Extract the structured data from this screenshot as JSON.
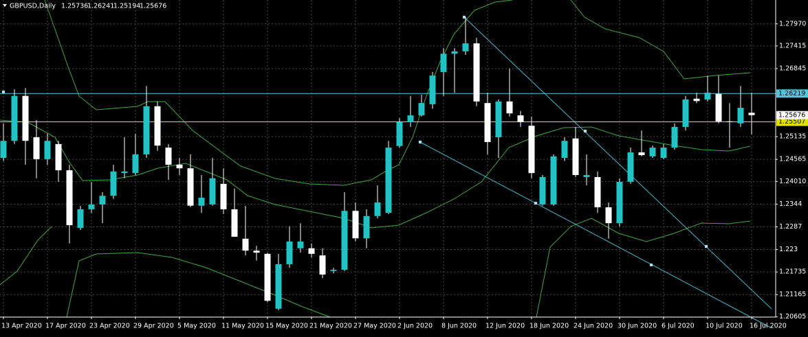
{
  "chart_data": {
    "type": "candlestick",
    "title": "GBPUSD,Daily",
    "categories": [
      "13 Apr 2020",
      null,
      null,
      null,
      "17 Apr 2020",
      null,
      null,
      null,
      "23 Apr 2020",
      null,
      null,
      null,
      "29 Apr 2020",
      null,
      null,
      null,
      "5 May 2020",
      null,
      null,
      null,
      "11 May 2020",
      null,
      null,
      null,
      "15 May 2020",
      null,
      null,
      null,
      "21 May 2020",
      null,
      null,
      null,
      "27 May 2020",
      null,
      null,
      null,
      "2 Jun 2020",
      null,
      null,
      null,
      "8 Jun 2020",
      null,
      null,
      null,
      "12 Jun 2020",
      null,
      null,
      null,
      "18 Jun 2020",
      null,
      null,
      null,
      "24 Jun 2020",
      null,
      null,
      null,
      "30 Jun 2020",
      null,
      null,
      null,
      "6 Jul 2020",
      null,
      null,
      null,
      "10 Jul 2020",
      null,
      null,
      null,
      "16 Jul 2020"
    ],
    "open": [
      1.246,
      1.2503,
      1.2616,
      1.2512,
      1.2457,
      1.2495,
      1.2429,
      1.2284,
      1.2331,
      1.2343,
      1.2365,
      1.2422,
      1.2422,
      1.2469,
      1.259,
      1.2486,
      1.2443,
      1.2434,
      1.234,
      1.2343,
      1.2395,
      1.2331,
      1.2257,
      1.2227,
      1.2219,
      1.2081,
      1.2193,
      1.2233,
      1.2233,
      1.2215,
      1.2176,
      1.2179,
      1.2327,
      1.2258,
      1.2314,
      1.2322,
      1.249,
      1.255,
      1.2567,
      1.2595,
      1.2676,
      1.2722,
      1.2728,
      1.2748,
      1.2598,
      1.2512,
      1.2602,
      1.2567,
      1.2541,
      1.2343,
      1.2343,
      1.246,
      1.2509,
      1.2412,
      1.2412,
      1.2336,
      1.2296,
      1.24,
      1.2474,
      1.2464,
      1.246,
      1.2486,
      1.2538,
      1.2609,
      1.2607,
      1.2621,
      1.2552,
      1.2547,
      1.25736
    ],
    "high": [
      1.2547,
      1.2633,
      1.2636,
      1.2555,
      1.2521,
      1.2503,
      1.2443,
      1.234,
      1.24,
      1.2374,
      1.2443,
      1.2512,
      1.2521,
      1.2641,
      1.2602,
      1.2495,
      1.246,
      1.2469,
      1.2417,
      1.246,
      1.2434,
      1.2383,
      1.234,
      1.2239,
      1.2222,
      1.2219,
      1.2288,
      1.2296,
      1.2245,
      1.2233,
      1.2184,
      1.2374,
      1.2348,
      1.2331,
      1.2391,
      1.2503,
      1.256,
      1.2616,
      1.2619,
      1.2676,
      1.2736,
      1.2736,
      1.2814,
      1.2762,
      1.2624,
      1.2607,
      1.2685,
      1.2578,
      1.2564,
      1.2417,
      1.2469,
      1.2512,
      1.2538,
      1.2469,
      1.2426,
      1.2348,
      1.2409,
      1.2486,
      1.2529,
      1.2491,
      1.2495,
      1.2547,
      1.2616,
      1.2624,
      1.2667,
      1.2667,
      1.2598,
      1.2641,
      1.26241
    ],
    "low": [
      1.2452,
      1.2495,
      1.2443,
      1.2409,
      1.2443,
      1.24,
      1.2245,
      1.2279,
      1.2322,
      1.2296,
      1.2357,
      1.2409,
      1.2417,
      1.246,
      1.2478,
      1.2405,
      1.2417,
      1.2336,
      1.2322,
      1.234,
      1.2319,
      1.2262,
      1.2215,
      1.2202,
      1.2098,
      1.2077,
      1.2184,
      1.2222,
      1.221,
      1.2158,
      1.217,
      1.2176,
      1.225,
      1.2233,
      1.2308,
      1.2319,
      1.2486,
      1.2538,
      1.2564,
      1.2584,
      1.2616,
      1.2624,
      1.2719,
      1.259,
      1.2469,
      1.246,
      1.2564,
      1.2538,
      1.2409,
      1.234,
      1.234,
      1.2452,
      1.2412,
      1.2391,
      1.2322,
      1.2257,
      1.2288,
      1.2395,
      1.2464,
      1.246,
      1.2457,
      1.2481,
      1.2529,
      1.2598,
      1.2602,
      1.2547,
      1.2486,
      1.2538,
      1.25194
    ],
    "close": [
      1.2503,
      1.2616,
      1.2503,
      1.2457,
      1.2503,
      1.2429,
      1.2291,
      1.2331,
      1.2343,
      1.2365,
      1.2426,
      1.2426,
      1.2469,
      1.259,
      1.2491,
      1.2443,
      1.2434,
      1.234,
      1.236,
      1.2409,
      1.2331,
      1.2262,
      1.2227,
      1.2222,
      1.2101,
      1.2193,
      1.225,
      1.225,
      1.2219,
      1.2167,
      1.2179,
      1.2327,
      1.2258,
      1.2314,
      1.2348,
      1.2486,
      1.255,
      1.2567,
      1.2598,
      1.2667,
      1.2722,
      1.2728,
      1.2748,
      1.2602,
      1.25,
      1.2602,
      1.2572,
      1.255,
      1.2422,
      1.2412,
      1.2464,
      1.2503,
      1.2417,
      1.2417,
      1.2336,
      1.2296,
      1.24,
      1.2474,
      1.2467,
      1.2486,
      1.2486,
      1.2538,
      1.2607,
      1.2603,
      1.2624,
      1.2552,
      1.255,
      1.2586,
      1.25676
    ],
    "up_color": "#20c4c4",
    "down_color": "#ffffff",
    "ylim": [
      1.206,
      1.2857
    ],
    "yticks": [
      {
        "value": 1.2797,
        "label": "1.27970"
      },
      1.27415,
      1.26845,
      1.25135,
      1.24565,
      {
        "value": 1.2401,
        "label": "1.24010"
      },
      1.2344,
      1.2287,
      1.223,
      1.21735,
      1.21165,
      1.20605
    ],
    "hlines": [
      {
        "value": 1.26219,
        "color": "#4fc8dc"
      },
      {
        "value": 1.25507,
        "color": "#e0e000"
      }
    ],
    "grid": true
  }
}
